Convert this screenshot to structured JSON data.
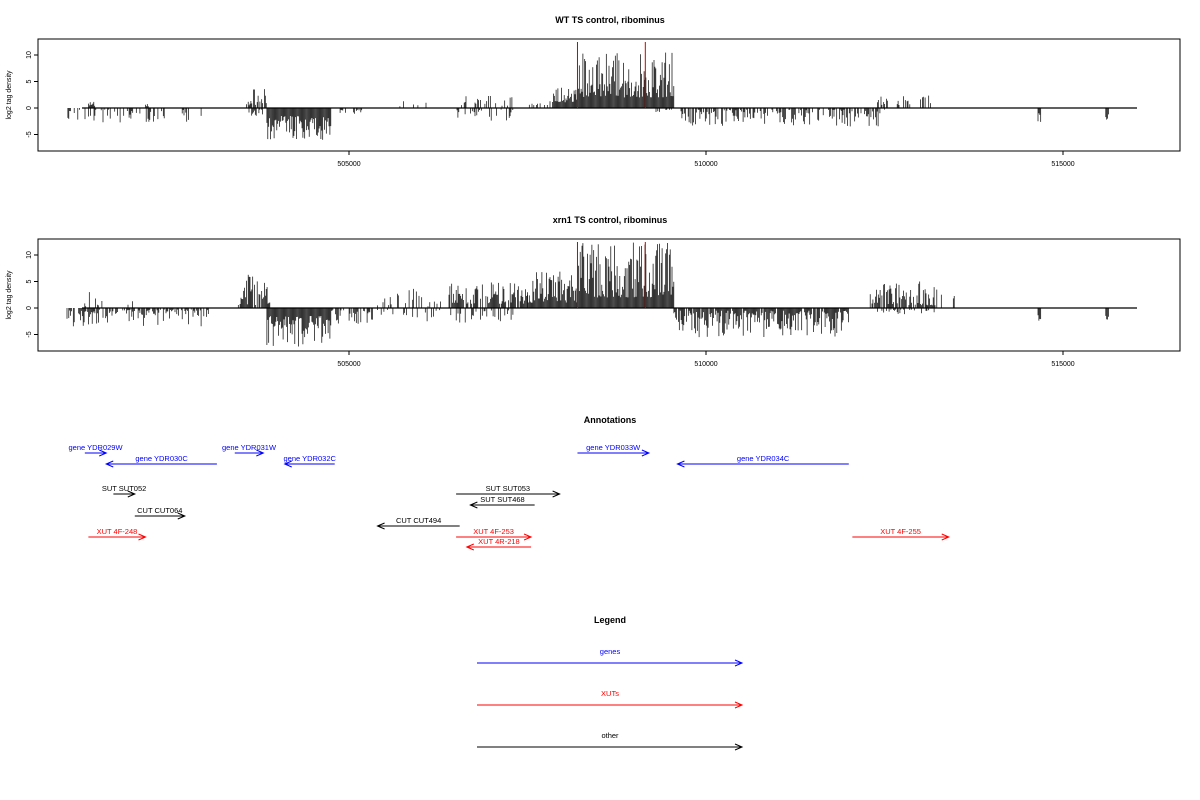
{
  "colors": {
    "gene": "#0000ff",
    "xut": "#ff0000",
    "other": "#000000",
    "marker": "#cc0000",
    "bar": "#000000"
  },
  "panels": [
    {
      "title": "WT TS control, ribominus",
      "ylabel": "log2 tag density",
      "y_ticks": [
        -5,
        0,
        5,
        10
      ],
      "x_ticks": [
        505000,
        510000,
        515000
      ],
      "xlim": [
        501000,
        517000
      ],
      "ylim": [
        -8,
        13
      ],
      "markers": [
        508200,
        509150
      ],
      "bar_regions": [
        {
          "start": 501050,
          "end": 502950,
          "sign": -1,
          "min": 0.3,
          "max": 2.8,
          "density": 0.35
        },
        {
          "start": 501350,
          "end": 501450,
          "sign": 1,
          "min": 0.4,
          "max": 1.4,
          "density": 1
        },
        {
          "start": 502150,
          "end": 502200,
          "sign": 1,
          "min": 0.3,
          "max": 0.9,
          "density": 1
        },
        {
          "start": 503550,
          "end": 503850,
          "sign": 1,
          "min": 0.5,
          "max": 3.8,
          "density": 0.8
        },
        {
          "start": 503600,
          "end": 503800,
          "sign": -1,
          "min": 0.3,
          "max": 1.5,
          "density": 0.4
        },
        {
          "start": 503850,
          "end": 504750,
          "sign": -1,
          "min": 1.5,
          "max": 6.0,
          "density": 1
        },
        {
          "start": 504850,
          "end": 505200,
          "sign": -1,
          "min": 0.3,
          "max": 1.2,
          "density": 0.25
        },
        {
          "start": 505700,
          "end": 506300,
          "sign": 1,
          "min": 0.3,
          "max": 1.6,
          "density": 0.15
        },
        {
          "start": 506500,
          "end": 507300,
          "sign": 1,
          "min": 0.4,
          "max": 2.5,
          "density": 0.3
        },
        {
          "start": 506500,
          "end": 507300,
          "sign": -1,
          "min": 0.3,
          "max": 2.6,
          "density": 0.3
        },
        {
          "start": 507500,
          "end": 507850,
          "sign": 1,
          "min": 0.3,
          "max": 1.3,
          "density": 0.25
        },
        {
          "start": 507850,
          "end": 508200,
          "sign": 1,
          "min": 1.0,
          "max": 4.5,
          "density": 1
        },
        {
          "start": 508200,
          "end": 509550,
          "sign": 1,
          "min": 2.0,
          "max": 10.5,
          "density": 1
        },
        {
          "start": 509300,
          "end": 509550,
          "sign": -1,
          "min": 0.3,
          "max": 0.8,
          "density": 0.3
        },
        {
          "start": 509650,
          "end": 512500,
          "sign": -1,
          "min": 0.3,
          "max": 3.5,
          "density": 0.5
        },
        {
          "start": 512400,
          "end": 513200,
          "sign": 1,
          "min": 0.5,
          "max": 2.4,
          "density": 0.3
        },
        {
          "start": 514650,
          "end": 514700,
          "sign": -1,
          "min": 1.0,
          "max": 2.8,
          "density": 1
        },
        {
          "start": 515600,
          "end": 515650,
          "sign": -1,
          "min": 1.0,
          "max": 2.2,
          "density": 1
        }
      ]
    },
    {
      "title": "xrn1 TS control, ribominus",
      "ylabel": "log2 tag density",
      "y_ticks": [
        -5,
        0,
        5,
        10
      ],
      "x_ticks": [
        505000,
        510000,
        515000
      ],
      "xlim": [
        501000,
        517000
      ],
      "ylim": [
        -8,
        13
      ],
      "markers": [
        508200,
        509150
      ],
      "bar_regions": [
        {
          "start": 501050,
          "end": 503050,
          "sign": -1,
          "min": 0.3,
          "max": 3.5,
          "density": 0.6
        },
        {
          "start": 501300,
          "end": 502000,
          "sign": 1,
          "min": 0.3,
          "max": 3.0,
          "density": 0.25
        },
        {
          "start": 503450,
          "end": 503900,
          "sign": 1,
          "min": 0.5,
          "max": 6.3,
          "density": 0.8
        },
        {
          "start": 503850,
          "end": 504750,
          "sign": -1,
          "min": 1.5,
          "max": 7.5,
          "density": 1
        },
        {
          "start": 504750,
          "end": 505350,
          "sign": -1,
          "min": 0.3,
          "max": 3.0,
          "density": 0.5
        },
        {
          "start": 505400,
          "end": 506350,
          "sign": 1,
          "min": 0.3,
          "max": 4.0,
          "density": 0.3
        },
        {
          "start": 505400,
          "end": 506300,
          "sign": -1,
          "min": 0.3,
          "max": 2.6,
          "density": 0.3
        },
        {
          "start": 506400,
          "end": 507500,
          "sign": 1,
          "min": 0.8,
          "max": 5.0,
          "density": 0.75
        },
        {
          "start": 506400,
          "end": 507300,
          "sign": -1,
          "min": 0.3,
          "max": 3.0,
          "density": 0.4
        },
        {
          "start": 507500,
          "end": 508200,
          "sign": 1,
          "min": 1.0,
          "max": 7.0,
          "density": 1
        },
        {
          "start": 508200,
          "end": 509550,
          "sign": 1,
          "min": 2.0,
          "max": 12.5,
          "density": 1
        },
        {
          "start": 509550,
          "end": 512000,
          "sign": -1,
          "min": 0.5,
          "max": 5.5,
          "density": 0.9
        },
        {
          "start": 512300,
          "end": 513300,
          "sign": 1,
          "min": 0.5,
          "max": 5.0,
          "density": 0.8
        },
        {
          "start": 513400,
          "end": 513600,
          "sign": 1,
          "min": 0.3,
          "max": 2.5,
          "density": 0.3
        },
        {
          "start": 512300,
          "end": 513300,
          "sign": -1,
          "min": 0.3,
          "max": 1.2,
          "density": 0.3
        },
        {
          "start": 514650,
          "end": 514700,
          "sign": -1,
          "min": 1.0,
          "max": 3.0,
          "density": 1
        },
        {
          "start": 515600,
          "end": 515650,
          "sign": -1,
          "min": 1.0,
          "max": 2.5,
          "density": 1
        }
      ]
    }
  ],
  "chart_data": [
    {
      "type": "bar",
      "title": "WT TS control, ribominus",
      "xlabel": "",
      "ylabel": "log2 tag density",
      "xlim": [
        501000,
        517000
      ],
      "ylim": [
        -8,
        13
      ],
      "x_ticks": [
        505000,
        510000,
        515000
      ],
      "y_ticks": [
        -5,
        0,
        5,
        10
      ],
      "vertical_markers": [
        508200,
        509150
      ],
      "grid": false
    },
    {
      "type": "bar",
      "title": "xrn1 TS control, ribominus",
      "xlabel": "",
      "ylabel": "log2 tag density",
      "xlim": [
        501000,
        517000
      ],
      "ylim": [
        -8,
        13
      ],
      "x_ticks": [
        505000,
        510000,
        515000
      ],
      "y_ticks": [
        -5,
        0,
        5,
        10
      ],
      "vertical_markers": [
        508200,
        509150
      ],
      "grid": false
    }
  ],
  "annotations": {
    "title": "Annotations",
    "items": [
      {
        "label": "gene YDR029W",
        "kind": "gene",
        "start": 501300,
        "end": 501600,
        "dir": "+",
        "row": 0
      },
      {
        "label": "gene YDR030C",
        "kind": "gene",
        "start": 501600,
        "end": 503150,
        "dir": "-",
        "row": 1
      },
      {
        "label": "gene YDR031W",
        "kind": "gene",
        "start": 503400,
        "end": 503800,
        "dir": "+",
        "row": 0
      },
      {
        "label": "gene YDR032C",
        "kind": "gene",
        "start": 504100,
        "end": 504800,
        "dir": "-",
        "row": 1
      },
      {
        "label": "gene YDR033W",
        "kind": "gene",
        "start": 508200,
        "end": 509200,
        "dir": "+",
        "row": 0
      },
      {
        "label": "gene YDR034C",
        "kind": "gene",
        "start": 509600,
        "end": 512000,
        "dir": "-",
        "row": 1
      },
      {
        "label": "SUT SUT052",
        "kind": "other",
        "start": 501700,
        "end": 502000,
        "dir": "+",
        "row": 3
      },
      {
        "label": "SUT SUT053",
        "kind": "other",
        "start": 506500,
        "end": 507950,
        "dir": "+",
        "row": 3
      },
      {
        "label": "SUT SUT468",
        "kind": "other",
        "start": 506700,
        "end": 507600,
        "dir": "-",
        "row": 4
      },
      {
        "label": "CUT CUT064",
        "kind": "other",
        "start": 502000,
        "end": 502700,
        "dir": "+",
        "row": 5
      },
      {
        "label": "CUT CUT494",
        "kind": "other",
        "start": 505400,
        "end": 506550,
        "dir": "-",
        "row": 6
      },
      {
        "label": "XUT 4F-248",
        "kind": "xut",
        "start": 501350,
        "end": 502150,
        "dir": "+",
        "row": 7
      },
      {
        "label": "XUT 4F-253",
        "kind": "xut",
        "start": 506500,
        "end": 507550,
        "dir": "+",
        "row": 7
      },
      {
        "label": "XUT 4R-218",
        "kind": "xut",
        "start": 506650,
        "end": 507550,
        "dir": "-",
        "row": 8
      },
      {
        "label": "XUT 4F-255",
        "kind": "xut",
        "start": 512050,
        "end": 513400,
        "dir": "+",
        "row": 7
      }
    ]
  },
  "legend": {
    "title": "Legend",
    "items": [
      {
        "label": "genes",
        "kind": "gene"
      },
      {
        "label": "XUTs",
        "kind": "xut"
      },
      {
        "label": "other",
        "kind": "other"
      }
    ]
  }
}
